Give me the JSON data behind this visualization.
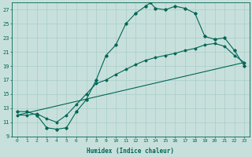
{
  "xlabel": "Humidex (Indice chaleur)",
  "bg_color": "#c8e0dc",
  "line_color": "#006655",
  "grid_color": "#a8ccc8",
  "xlim": [
    -0.5,
    23.5
  ],
  "ylim": [
    9,
    28
  ],
  "xticks": [
    0,
    1,
    2,
    3,
    4,
    5,
    6,
    7,
    8,
    9,
    10,
    11,
    12,
    13,
    14,
    15,
    16,
    17,
    18,
    19,
    20,
    21,
    22,
    23
  ],
  "yticks": [
    9,
    11,
    13,
    15,
    17,
    19,
    21,
    23,
    25,
    27
  ],
  "curve1_x": [
    0,
    1,
    2,
    3,
    4,
    5,
    6,
    7,
    8,
    9,
    10,
    11,
    12,
    13,
    13.5,
    14,
    15,
    16,
    17,
    18,
    19,
    20,
    21,
    22,
    23
  ],
  "curve1_y": [
    12.5,
    12.5,
    12.0,
    10.2,
    10.0,
    10.2,
    12.5,
    14.2,
    17.0,
    20.5,
    22.0,
    25.0,
    26.5,
    27.5,
    28.0,
    27.2,
    27.0,
    27.5,
    27.2,
    26.5,
    23.2,
    22.8,
    23.0,
    21.2,
    19.0
  ],
  "curve2_x": [
    0,
    1,
    2,
    3,
    4,
    5,
    6,
    7,
    8,
    9,
    10,
    11,
    12,
    13,
    14,
    15,
    16,
    17,
    18,
    19,
    20,
    21,
    22,
    23
  ],
  "curve2_y": [
    12.0,
    12.0,
    12.2,
    11.5,
    11.0,
    12.0,
    13.5,
    15.0,
    16.5,
    17.0,
    17.8,
    18.5,
    19.2,
    19.8,
    20.2,
    20.5,
    20.8,
    21.2,
    21.5,
    22.0,
    22.2,
    21.8,
    20.5,
    19.5
  ],
  "curve3_x": [
    0,
    23
  ],
  "curve3_y": [
    12.0,
    19.5
  ]
}
